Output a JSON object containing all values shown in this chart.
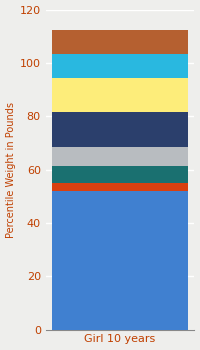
{
  "categories": [
    "Girl 10 years"
  ],
  "segments": [
    {
      "value": 52.0,
      "color": "#4080D0"
    },
    {
      "value": 3.0,
      "color": "#D84010"
    },
    {
      "value": 6.5,
      "color": "#1A7070"
    },
    {
      "value": 7.0,
      "color": "#B8BCC0"
    },
    {
      "value": 13.0,
      "color": "#2B3F6C"
    },
    {
      "value": 13.0,
      "color": "#FDED7A"
    },
    {
      "value": 9.0,
      "color": "#29B8E0"
    },
    {
      "value": 9.0,
      "color": "#B56030"
    }
  ],
  "ylabel": "Percentile Weight in Pounds",
  "ylim": [
    0,
    120
  ],
  "yticks": [
    0,
    20,
    40,
    60,
    80,
    100,
    120
  ],
  "background_color": "#EEEEEC",
  "grid_color": "#FFFFFF",
  "ylabel_color": "#C04000",
  "xlabel_color": "#C04000",
  "tick_color": "#C04000",
  "bar_width": 0.45,
  "figsize": [
    2.0,
    3.5
  ],
  "dpi": 100
}
